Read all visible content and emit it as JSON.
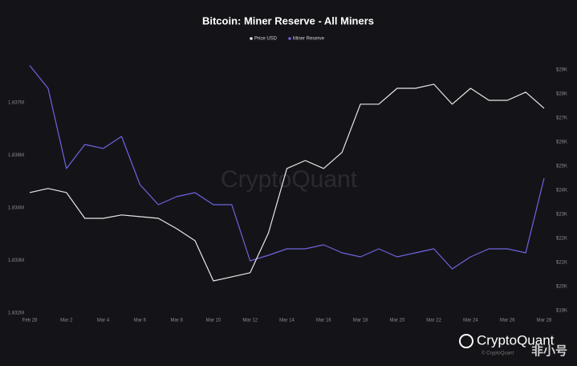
{
  "chart_data": {
    "type": "line",
    "title": "Bitcoin: Miner Reserve - All Miners",
    "watermark": "CryptoQuant",
    "logo": "CryptoQuant",
    "copyright": "© CryptoQuant",
    "overlay": "非小号",
    "categories": [
      "Feb 28",
      null,
      "Mar 2",
      null,
      "Mar 4",
      null,
      "Mar 6",
      null,
      "Mar 8",
      null,
      "Mar 10",
      null,
      "Mar 12",
      null,
      "Mar 14",
      null,
      "Mar 16",
      null,
      "Mar 18",
      null,
      "Mar 20",
      null,
      "Mar 22",
      null,
      "Mar 24",
      null,
      "Mar 26",
      null,
      "Mar 28"
    ],
    "series": [
      {
        "name": "Price USD",
        "color": "#e8e8e8",
        "axis": "y2",
        "values": [
          23900,
          24070,
          23900,
          22830,
          22830,
          22970,
          22900,
          22830,
          22400,
          21900,
          20230,
          20400,
          20570,
          22230,
          24900,
          25230,
          24900,
          25570,
          27570,
          27570,
          28230,
          28230,
          28400,
          27570,
          28230,
          27730,
          27730,
          28070,
          27400
        ]
      },
      {
        "name": "Miner Reserve",
        "color": "#6e63e0",
        "values": [
          1837650,
          1837130,
          1835298,
          1835847,
          1835756,
          1836030,
          1834931,
          1834473,
          1834656,
          1834748,
          1834473,
          1834473,
          1833191,
          1833319,
          1833466,
          1833466,
          1833557,
          1833374,
          1833282,
          1833466,
          1833282,
          1833374,
          1833466,
          1833008,
          1833282,
          1833466,
          1833466,
          1833374,
          1835078
        ]
      }
    ],
    "ylim": [
      1831964,
      1837679
    ],
    "yticks": [
      {
        "value": 1832000,
        "label": "1.832M"
      },
      {
        "value": 1833200,
        "label": "1.833M"
      },
      {
        "value": 1834400,
        "label": "1.834M"
      },
      {
        "value": 1835600,
        "label": "1.836M"
      },
      {
        "value": 1836800,
        "label": "1.837M"
      }
    ],
    "y2lim": [
      18830,
      29230
    ],
    "y2ticks": [
      {
        "value": 19000,
        "label": "$19K"
      },
      {
        "value": 20000,
        "label": "$20K"
      },
      {
        "value": 21000,
        "label": "$21K"
      },
      {
        "value": 22000,
        "label": "$22K"
      },
      {
        "value": 23000,
        "label": "$23K"
      },
      {
        "value": 24000,
        "label": "$24K"
      },
      {
        "value": 25000,
        "label": "$25K"
      },
      {
        "value": 26000,
        "label": "$26K"
      },
      {
        "value": 27000,
        "label": "$27K"
      },
      {
        "value": 28000,
        "label": "$28K"
      },
      {
        "value": 29000,
        "label": "$29K"
      }
    ],
    "grid": false
  }
}
